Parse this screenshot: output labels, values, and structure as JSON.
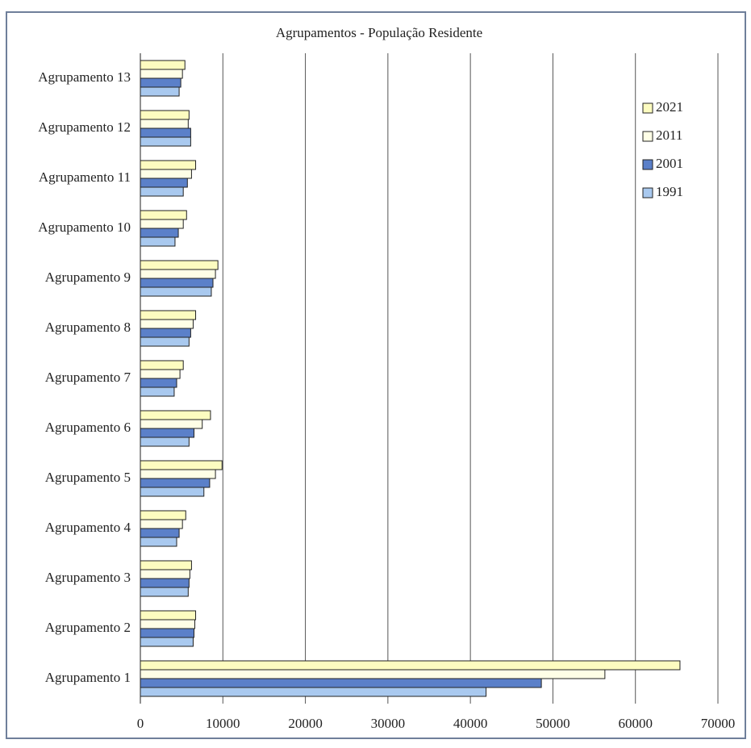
{
  "chart_data": {
    "type": "bar",
    "orientation": "horizontal",
    "title": "Agrupamentos -  População Residente",
    "categories": [
      "Agrupamento 1",
      "Agrupamento 2",
      "Agrupamento 3",
      "Agrupamento 4",
      "Agrupamento 5",
      "Agrupamento 6",
      "Agrupamento 7",
      "Agrupamento 8",
      "Agrupamento 9",
      "Agrupamento 10",
      "Agrupamento 11",
      "Agrupamento 12",
      "Agrupamento 13"
    ],
    "series": [
      {
        "name": "2021",
        "color": "#fdfcc0",
        "values": [
          65400,
          6700,
          6200,
          5500,
          9900,
          8500,
          5200,
          6700,
          9400,
          5600,
          6700,
          5900,
          5400
        ]
      },
      {
        "name": "2011",
        "color": "#fefee6",
        "values": [
          56300,
          6600,
          6000,
          5100,
          9100,
          7500,
          4800,
          6400,
          9100,
          5200,
          6200,
          5800,
          5100
        ]
      },
      {
        "name": "2001",
        "color": "#5b80c9",
        "values": [
          48600,
          6500,
          5900,
          4700,
          8400,
          6500,
          4400,
          6100,
          8800,
          4600,
          5700,
          6100,
          4900
        ]
      },
      {
        "name": "1991",
        "color": "#a9c9ef",
        "values": [
          41900,
          6400,
          5800,
          4400,
          7700,
          5900,
          4100,
          5900,
          8600,
          4200,
          5200,
          6100,
          4700
        ]
      }
    ],
    "xlim": [
      0,
      70000
    ],
    "xticks": [
      0,
      10000,
      20000,
      30000,
      40000,
      50000,
      60000,
      70000
    ],
    "grid": true,
    "legend": "top-right"
  }
}
